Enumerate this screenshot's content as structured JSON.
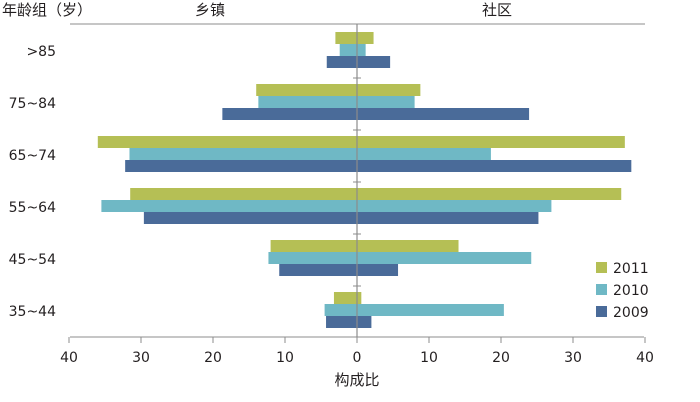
{
  "chart_data": {
    "type": "bar",
    "orientation": "horizontal-diverging",
    "ylabel": "年龄组（岁）",
    "xlabel": "构成比",
    "side_labels": {
      "left": "乡镇",
      "right": "社区"
    },
    "categories": [
      ">85",
      "75~84",
      "65~74",
      "55~64",
      "45~54",
      "35~44"
    ],
    "xlim": [
      -40,
      40
    ],
    "xticks": [
      -40,
      -30,
      -20,
      -10,
      0,
      10,
      20,
      30,
      40
    ],
    "xtick_labels": [
      "40",
      "30",
      "20",
      "10",
      "0",
      "10",
      "20",
      "30",
      "40"
    ],
    "grid": false,
    "legend_position": "bottom-right",
    "series": [
      {
        "name": "2011",
        "color": "#b5bf55",
        "left": [
          3.0,
          14.0,
          36.0,
          31.5,
          12.0,
          3.2
        ],
        "right": [
          2.3,
          8.8,
          37.2,
          36.7,
          14.1,
          0.6
        ]
      },
      {
        "name": "2010",
        "color": "#6fb8c5",
        "left": [
          2.4,
          13.7,
          31.6,
          35.5,
          12.3,
          4.5
        ],
        "right": [
          1.2,
          8.0,
          18.6,
          27.0,
          24.2,
          20.4
        ]
      },
      {
        "name": "2009",
        "color": "#4a6b99",
        "left": [
          4.2,
          18.7,
          32.2,
          29.6,
          10.8,
          4.3
        ],
        "right": [
          4.6,
          23.9,
          38.1,
          25.2,
          5.7,
          2.0
        ]
      }
    ]
  }
}
